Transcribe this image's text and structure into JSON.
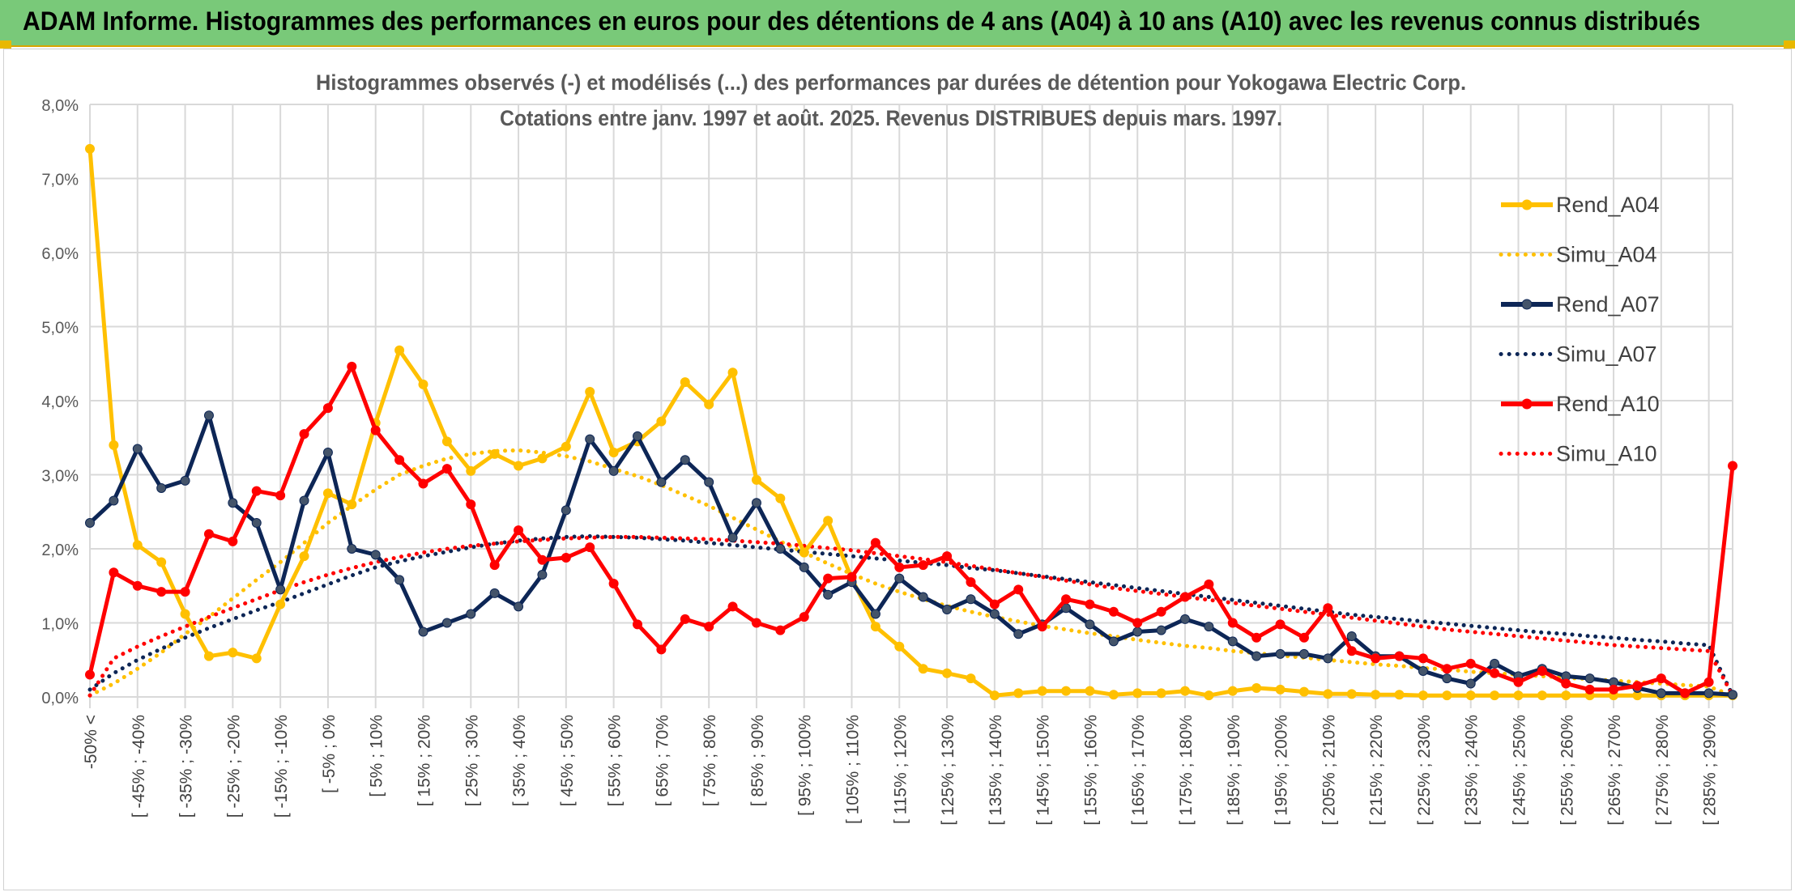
{
  "banner": {
    "title": "ADAM Informe. Histogrammes des performances en euros pour des détentions de 4 ans (A04) à 10 ans (A10) avec les revenus connus distribués"
  },
  "colors": {
    "banner_bg": "#79c979",
    "rend_a04": "#ffc000",
    "rend_a07": "#0d2656",
    "rend_a10": "#ff0000",
    "grid": "#d9d9d9"
  },
  "chart_data": {
    "type": "line",
    "title": "Histogrammes observés (-) et modélisés (...) des performances par durées de détention pour Yokogawa Electric Corp.",
    "subtitle": "Cotations entre janv. 1997 et août. 2025. Revenus DISTRIBUES depuis mars. 1997.",
    "ylim": [
      0,
      8
    ],
    "yticks": [
      "0,0%",
      "1,0%",
      "2,0%",
      "3,0%",
      "4,0%",
      "5,0%",
      "6,0%",
      "7,0%",
      "8,0%"
    ],
    "y_unit": "%",
    "grid": true,
    "legend_position": "right",
    "xtick_labels": [
      "-50% <",
      "[ -45% ; -40%",
      "[ -35% ; -30%",
      "[ -25% ; -20%",
      "[ -15% ; -10%",
      "[ -5% ; 0%",
      "[ 5% ; 10%",
      "[ 15% ; 20%",
      "[ 25% ; 30%",
      "[ 35% ; 40%",
      "[ 45% ; 50%",
      "[ 55% ; 60%",
      "[ 65% ; 70%",
      "[ 75% ; 80%",
      "[ 85% ; 90%",
      "[ 95% ; 100%",
      "[ 105% ; 110%",
      "[ 115% ; 120%",
      "[ 125% ; 130%",
      "[ 135% ; 140%",
      "[ 145% ; 150%",
      "[ 155% ; 160%",
      "[ 165% ; 170%",
      "[ 175% ; 180%",
      "[ 185% ; 190%",
      "[ 195% ; 200%",
      "[ 205% ; 210%",
      "[ 215% ; 220%",
      "[ 225% ; 230%",
      "[ 235% ; 240%",
      "[ 245% ; 250%",
      "[ 255% ; 260%",
      "[ 265% ; 270%",
      "[ 275% ; 280%",
      "[ 285% ; 290%"
    ],
    "series": [
      {
        "name": "Rend_A04",
        "style": "solid",
        "color": "#ffc000",
        "values": [
          7.4,
          3.4,
          2.05,
          1.82,
          1.12,
          0.55,
          0.6,
          0.52,
          1.25,
          1.9,
          2.75,
          2.6,
          3.7,
          4.68,
          4.22,
          3.45,
          3.05,
          3.28,
          3.12,
          3.22,
          3.38,
          4.12,
          3.3,
          3.45,
          3.72,
          4.25,
          3.95,
          4.38,
          2.93,
          2.68,
          1.95,
          2.38,
          1.6,
          0.95,
          0.68,
          0.38,
          0.32,
          0.25,
          0.02,
          0.05,
          0.08,
          0.08,
          0.08,
          0.03,
          0.05,
          0.05,
          0.08,
          0.02,
          0.08,
          0.12,
          0.1,
          0.07,
          0.04,
          0.04,
          0.03,
          0.03,
          0.02,
          0.02,
          0.02,
          0.02,
          0.02,
          0.02,
          0.02,
          0.02,
          0.02,
          0.02,
          0.02,
          0.02,
          0.02,
          0.02
        ]
      },
      {
        "name": "Simu_A04",
        "style": "dotted",
        "color": "#ffc000",
        "values": [
          0.02,
          0.18,
          0.38,
          0.6,
          0.85,
          1.08,
          1.33,
          1.58,
          1.82,
          2.08,
          2.35,
          2.58,
          2.8,
          3.0,
          3.12,
          3.22,
          3.28,
          3.32,
          3.33,
          3.3,
          3.25,
          3.18,
          3.08,
          2.98,
          2.86,
          2.72,
          2.58,
          2.42,
          2.26,
          2.1,
          1.95,
          1.8,
          1.66,
          1.53,
          1.42,
          1.32,
          1.23,
          1.15,
          1.08,
          1.02,
          0.96,
          0.91,
          0.86,
          0.82,
          0.77,
          0.73,
          0.69,
          0.66,
          0.62,
          0.59,
          0.56,
          0.53,
          0.5,
          0.47,
          0.44,
          0.42,
          0.39,
          0.37,
          0.34,
          0.32,
          0.3,
          0.28,
          0.26,
          0.24,
          0.22,
          0.2,
          0.18,
          0.16,
          0.14,
          0.02
        ]
      },
      {
        "name": "Rend_A07",
        "style": "solid",
        "color": "#0d2656",
        "values": [
          2.35,
          2.65,
          3.35,
          2.82,
          2.92,
          3.8,
          2.62,
          2.35,
          1.45,
          2.65,
          3.3,
          2.0,
          1.92,
          1.58,
          0.88,
          1.0,
          1.12,
          1.4,
          1.22,
          1.65,
          2.52,
          3.48,
          3.05,
          3.52,
          2.9,
          3.2,
          2.9,
          2.15,
          2.62,
          2.0,
          1.75,
          1.38,
          1.55,
          1.12,
          1.6,
          1.35,
          1.18,
          1.32,
          1.12,
          0.85,
          0.98,
          1.2,
          0.98,
          0.75,
          0.88,
          0.9,
          1.05,
          0.95,
          0.75,
          0.55,
          0.58,
          0.58,
          0.52,
          0.82,
          0.55,
          0.55,
          0.35,
          0.25,
          0.18,
          0.45,
          0.28,
          0.38,
          0.28,
          0.25,
          0.2,
          0.12,
          0.05,
          0.05,
          0.05,
          0.03
        ]
      },
      {
        "name": "Simu_A07",
        "style": "dotted",
        "color": "#0d2656",
        "values": [
          0.1,
          0.32,
          0.5,
          0.65,
          0.8,
          0.93,
          1.05,
          1.17,
          1.28,
          1.4,
          1.52,
          1.64,
          1.75,
          1.83,
          1.9,
          1.96,
          2.02,
          2.07,
          2.11,
          2.14,
          2.16,
          2.17,
          2.16,
          2.15,
          2.13,
          2.11,
          2.08,
          2.05,
          2.02,
          1.99,
          1.96,
          1.93,
          1.9,
          1.87,
          1.84,
          1.81,
          1.78,
          1.74,
          1.71,
          1.67,
          1.63,
          1.59,
          1.55,
          1.51,
          1.47,
          1.43,
          1.39,
          1.35,
          1.31,
          1.27,
          1.23,
          1.19,
          1.15,
          1.11,
          1.08,
          1.05,
          1.02,
          0.99,
          0.96,
          0.93,
          0.9,
          0.87,
          0.85,
          0.82,
          0.8,
          0.77,
          0.75,
          0.72,
          0.7,
          0.02
        ]
      },
      {
        "name": "Rend_A10",
        "style": "solid",
        "color": "#ff0000",
        "values": [
          0.3,
          1.68,
          1.5,
          1.42,
          1.42,
          2.2,
          2.1,
          2.78,
          2.72,
          3.55,
          3.9,
          4.46,
          3.6,
          3.2,
          2.88,
          3.08,
          2.6,
          1.78,
          2.25,
          1.85,
          1.88,
          2.02,
          1.53,
          0.98,
          0.64,
          1.05,
          0.95,
          1.22,
          1.0,
          0.9,
          1.08,
          1.6,
          1.62,
          2.08,
          1.75,
          1.78,
          1.9,
          1.55,
          1.25,
          1.45,
          0.95,
          1.32,
          1.25,
          1.15,
          1.0,
          1.15,
          1.35,
          1.52,
          1.0,
          0.8,
          0.98,
          0.8,
          1.2,
          0.62,
          0.52,
          0.55,
          0.52,
          0.38,
          0.45,
          0.32,
          0.2,
          0.35,
          0.18,
          0.1,
          0.1,
          0.15,
          0.25,
          0.05,
          0.2,
          3.12
        ]
      },
      {
        "name": "Simu_A10",
        "style": "dotted",
        "color": "#ff0000",
        "values": [
          0.02,
          0.52,
          0.68,
          0.82,
          0.95,
          1.08,
          1.2,
          1.32,
          1.44,
          1.55,
          1.65,
          1.74,
          1.82,
          1.89,
          1.95,
          2.0,
          2.04,
          2.07,
          2.1,
          2.12,
          2.14,
          2.15,
          2.16,
          2.16,
          2.15,
          2.14,
          2.13,
          2.11,
          2.09,
          2.07,
          2.04,
          2.01,
          1.98,
          1.94,
          1.9,
          1.86,
          1.82,
          1.77,
          1.72,
          1.67,
          1.62,
          1.57,
          1.52,
          1.47,
          1.43,
          1.39,
          1.35,
          1.31,
          1.27,
          1.23,
          1.19,
          1.15,
          1.11,
          1.07,
          1.03,
          0.99,
          0.95,
          0.91,
          0.88,
          0.85,
          0.82,
          0.79,
          0.76,
          0.73,
          0.7,
          0.68,
          0.66,
          0.64,
          0.62,
          0.02
        ]
      }
    ]
  }
}
